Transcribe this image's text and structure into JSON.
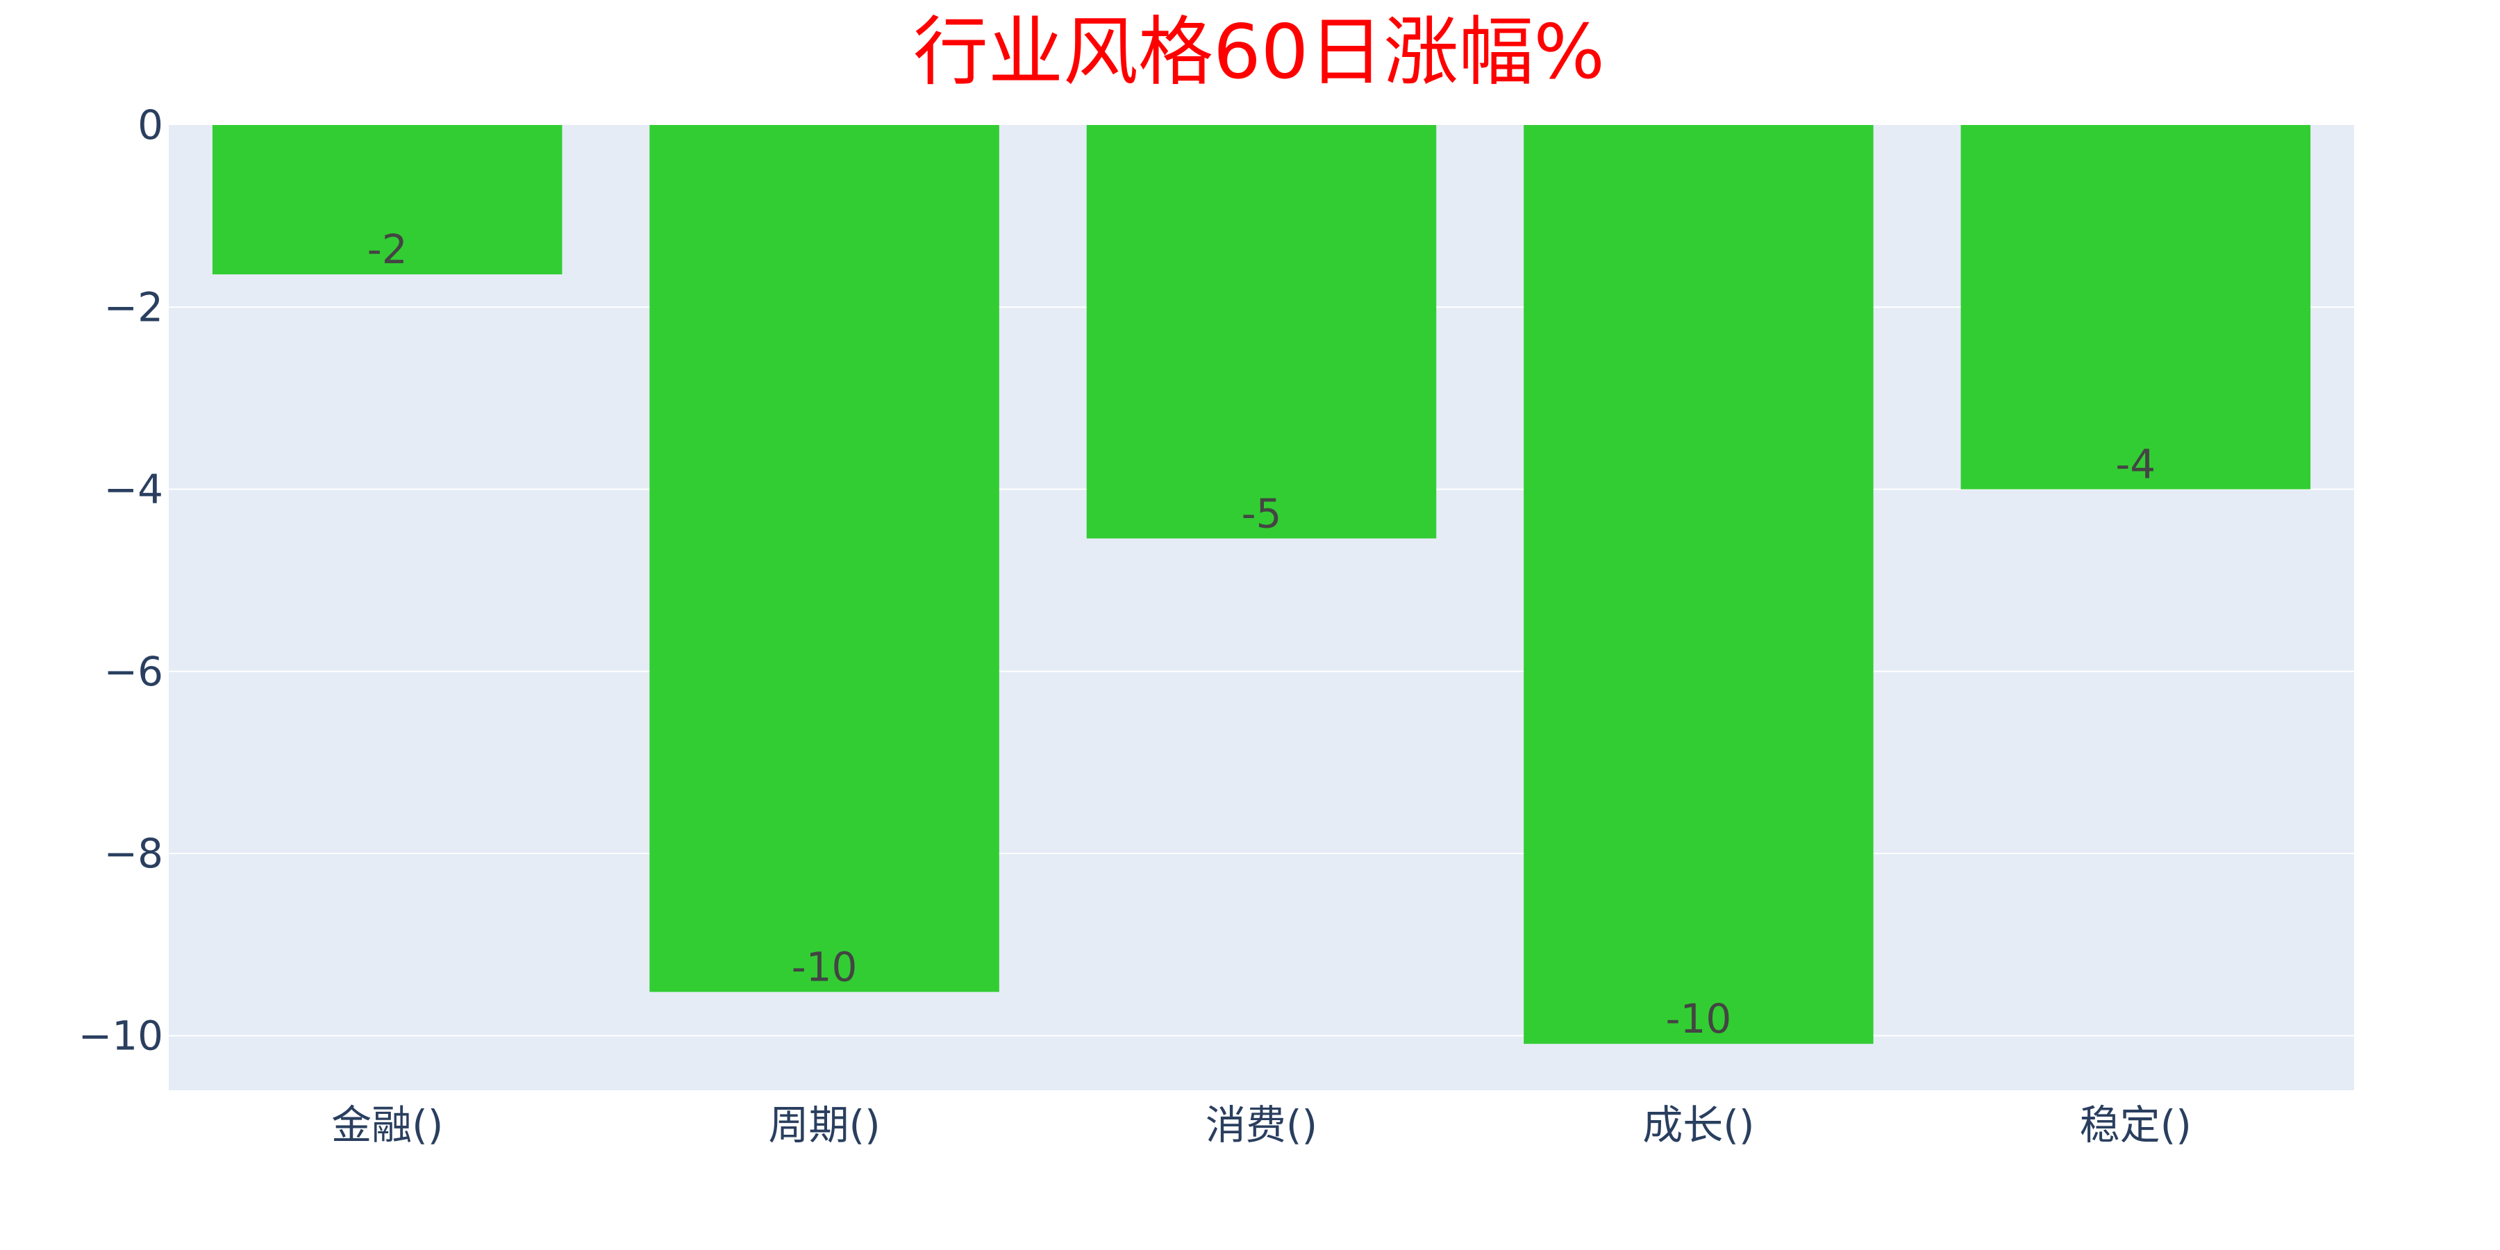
{
  "chart_data": {
    "type": "bar",
    "title": "行业风格60日涨幅%",
    "categories": [
      "金融()",
      "周期()",
      "消费()",
      "成长()",
      "稳定()"
    ],
    "values": [
      -1.64,
      -9.52,
      -4.54,
      -10.09,
      -4.0
    ],
    "data_labels": [
      "-2",
      "-10",
      "-5",
      "-10",
      "-4"
    ],
    "xlabel": "",
    "ylabel": "",
    "ylim": [
      -10.6,
      0
    ],
    "yticks": [
      0,
      -2,
      -4,
      -6,
      -8,
      -10
    ],
    "ytick_labels": [
      "0",
      "−2",
      "−4",
      "−6",
      "−8",
      "−10"
    ],
    "grid": true,
    "legend": "none",
    "colors": {
      "bar": "#32cd32",
      "plot_bg": "#e5ecf6",
      "grid": "#ffffff",
      "title": "#ff0000",
      "tick": "#2a3f5f",
      "data_label": "#444444"
    }
  }
}
